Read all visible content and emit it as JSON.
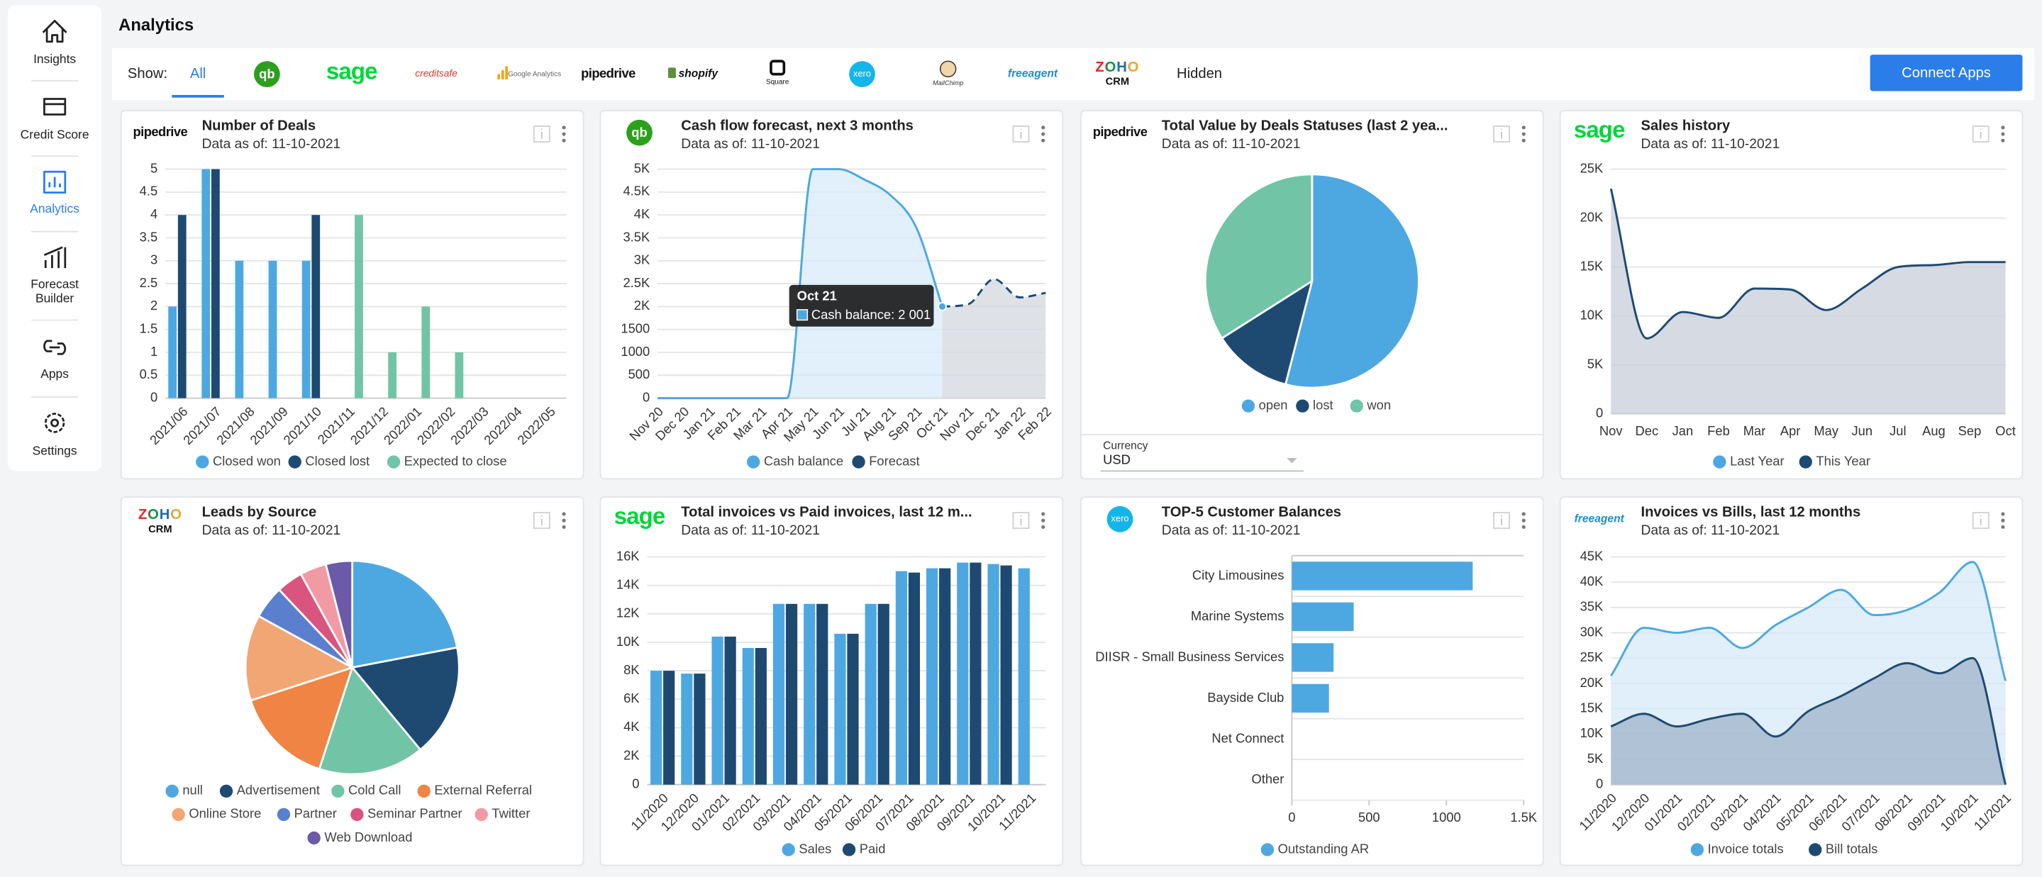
{
  "sidebar": {
    "items": [
      [
        "Insights"
      ],
      [
        "Credit Score"
      ],
      [
        "Analytics"
      ],
      [
        "Forecast",
        "Builder"
      ],
      [
        "Apps"
      ],
      [
        "Settings"
      ]
    ]
  },
  "page_title": "Analytics",
  "show_bar": {
    "label": "Show:",
    "tabs": [
      {
        "text": "All"
      },
      {
        "text": "qb"
      },
      {
        "text": "sage"
      },
      {
        "text": "creditsafe"
      },
      {
        "text": "Google Analytics"
      },
      {
        "text": "pipedrive"
      },
      {
        "text": "shopify"
      },
      {
        "text": "Square"
      },
      {
        "text": "xero"
      },
      {
        "text": "MailChimp"
      },
      {
        "text": "freeagent"
      },
      {
        "text": "ZOHO",
        "sub": "CRM"
      },
      {
        "text": "Hidden"
      }
    ],
    "button": "Connect Apps"
  },
  "chart_data": [
    {
      "type": "bar",
      "logo": "pipedrive",
      "title": "Number of Deals",
      "subtitle": "Data as of: 11-10-2021",
      "categories": [
        "2021/06",
        "2021/07",
        "2021/08",
        "2021/09",
        "2021/10",
        "2021/11",
        "2021/12",
        "2022/01",
        "2022/02",
        "2022/03",
        "2022/04",
        "2022/05"
      ],
      "series": [
        {
          "name": "Closed won",
          "color": "#4da8e2",
          "values": [
            2,
            5,
            3,
            3,
            3,
            null,
            null,
            null,
            null,
            null,
            null,
            null
          ]
        },
        {
          "name": "Closed lost",
          "color": "#1e4a72",
          "values": [
            4,
            5,
            null,
            null,
            4,
            null,
            null,
            null,
            null,
            null,
            null,
            null
          ]
        },
        {
          "name": "Expected to close",
          "color": "#72c4a6",
          "values": [
            null,
            null,
            null,
            null,
            null,
            4,
            1,
            2,
            1,
            null,
            null,
            null
          ]
        }
      ],
      "ylim": [
        0,
        5
      ],
      "yticks": [
        0,
        0.5,
        1,
        1.5,
        2,
        2.5,
        3,
        3.5,
        4,
        4.5,
        5
      ],
      "grid": true
    },
    {
      "type": "area",
      "logo": "qb",
      "title": "Cash flow forecast, next 3 months",
      "subtitle": "Data as of: 11-10-2021",
      "categories": [
        "Nov 20",
        "Dec 20",
        "Jan 21",
        "Feb 21",
        "Mar 21",
        "Apr 21",
        "May 21",
        "Jun 21",
        "Jul 21",
        "Aug 21",
        "Sep 21",
        "Oct 21",
        "Nov 21",
        "Dec 21",
        "Jan 22",
        "Feb 22"
      ],
      "series": [
        {
          "name": "Cash balance",
          "color": "#4da8e2",
          "fill": "#d7ebf9",
          "values": [
            0,
            0,
            0,
            0,
            0,
            0,
            5000,
            5000,
            4770,
            4430,
            3720,
            2001,
            null,
            null,
            null,
            null
          ]
        },
        {
          "name": "Forecast",
          "color": "#1e4a72",
          "fill": "#d3d8df",
          "dashed": true,
          "values": [
            null,
            null,
            null,
            null,
            null,
            null,
            null,
            null,
            null,
            null,
            null,
            2001,
            2050,
            2600,
            2200,
            2300
          ]
        }
      ],
      "ylim": [
        0,
        5000
      ],
      "yticks": [
        0,
        500,
        1000,
        1500,
        {
          "value": 2000,
          "label": "2K"
        },
        {
          "value": 2500,
          "label": "2.5K"
        },
        {
          "value": 3000,
          "label": "3K"
        },
        {
          "value": 3500,
          "label": "3.5K"
        },
        {
          "value": 4000,
          "label": "4K"
        },
        {
          "value": 4500,
          "label": "4.5K"
        },
        {
          "value": 5000,
          "label": "5K"
        }
      ],
      "grid": true,
      "tooltip": {
        "title": "Oct 21",
        "text": "Cash balance: 2 001"
      }
    },
    {
      "type": "pie",
      "logo": "pipedrive",
      "title": "Total Value by Deals Statuses (last 2 yea...",
      "subtitle": "Data as of: 11-10-2021",
      "categories": [
        "open",
        "lost",
        "won"
      ],
      "values": [
        54,
        12,
        34
      ],
      "colors": [
        "#4da8e2",
        "#1e4a72",
        "#72c4a6"
      ],
      "currency": {
        "label": "Currency",
        "value": "USD"
      }
    },
    {
      "type": "area",
      "logo": "sage",
      "title": "Sales history",
      "subtitle": "Data as of: 11-10-2021",
      "categories": [
        "Nov",
        "Dec",
        "Jan",
        "Feb",
        "Mar",
        "Apr",
        "May",
        "Jun",
        "Jul",
        "Aug",
        "Sep",
        "Oct"
      ],
      "series": [
        {
          "name": "Last Year",
          "color": "#4da8e2",
          "fill": "#d7ebf9",
          "values": [
            null,
            null,
            null,
            null,
            null,
            null,
            null,
            null,
            null,
            null,
            null,
            null
          ]
        },
        {
          "name": "This Year",
          "color": "#1e4a72",
          "fill": "#c8ced8",
          "values": [
            23000,
            7700,
            10400,
            9800,
            12800,
            12700,
            10600,
            12800,
            15000,
            15200,
            15500,
            15500
          ]
        }
      ],
      "ylim": [
        0,
        25000
      ],
      "yticks": [
        0,
        {
          "value": 5000,
          "label": "5K"
        },
        {
          "value": 10000,
          "label": "10K"
        },
        {
          "value": 15000,
          "label": "15K"
        },
        {
          "value": 20000,
          "label": "20K"
        },
        {
          "value": 25000,
          "label": "25K"
        }
      ],
      "grid": true
    },
    {
      "type": "pie",
      "logo": "ZOHO",
      "logo_sub": "CRM",
      "title": "Leads by Source",
      "subtitle": "Data as of: 11-10-2021",
      "categories": [
        "null",
        "Advertisement",
        "Cold Call",
        "External Referral",
        "Online Store",
        "Partner",
        "Seminar Partner",
        "Twitter",
        "Web Download"
      ],
      "values": [
        22,
        17,
        16,
        15,
        13,
        5,
        4,
        4,
        4
      ],
      "colors": [
        "#4da8e2",
        "#1e4a72",
        "#72c4a6",
        "#ef8444",
        "#f2a673",
        "#5b7fcf",
        "#d9547f",
        "#f29aa3",
        "#6a5aa8"
      ]
    },
    {
      "type": "bar",
      "logo": "sage",
      "title": "Total invoices vs Paid invoices, last 12 m...",
      "subtitle": "Data as of: 11-10-2021",
      "categories": [
        "11/2020",
        "12/2020",
        "01/2021",
        "02/2021",
        "03/2021",
        "04/2021",
        "05/2021",
        "06/2021",
        "07/2021",
        "08/2021",
        "09/2021",
        "10/2021",
        "11/2021"
      ],
      "series": [
        {
          "name": "Sales",
          "color": "#4da8e2",
          "values": [
            8000,
            7800,
            10400,
            9600,
            12700,
            12700,
            10600,
            12700,
            15000,
            15200,
            15600,
            15500,
            15200
          ]
        },
        {
          "name": "Paid",
          "color": "#1e4a72",
          "values": [
            8000,
            7800,
            10400,
            9600,
            12700,
            12700,
            10600,
            12700,
            14900,
            15200,
            15600,
            15400,
            null
          ]
        }
      ],
      "ylim": [
        0,
        16000
      ],
      "yticks": [
        0,
        {
          "value": 2000,
          "label": "2K"
        },
        {
          "value": 4000,
          "label": "4K"
        },
        {
          "value": 6000,
          "label": "6K"
        },
        {
          "value": 8000,
          "label": "8K"
        },
        {
          "value": 10000,
          "label": "10K"
        },
        {
          "value": 12000,
          "label": "12K"
        },
        {
          "value": 14000,
          "label": "14K"
        },
        {
          "value": 16000,
          "label": "16K"
        }
      ],
      "grid": true
    },
    {
      "type": "hbar",
      "logo": "xero",
      "title": "TOP-5 Customer Balances",
      "subtitle": "Data as of: 11-10-2021",
      "categories": [
        "City Limousines",
        "Marine Systems",
        "DIISR - Small Business Services",
        "Bayside Club",
        "Net Connect",
        "Other"
      ],
      "series": [
        {
          "name": "Outstanding AR",
          "color": "#4da8e2",
          "values": [
            1170,
            400,
            270,
            240,
            0,
            0
          ]
        }
      ],
      "xlim": [
        0,
        1500
      ],
      "xticks": [
        0,
        500,
        1000,
        {
          "value": 1500,
          "label": "1.5K"
        }
      ]
    },
    {
      "type": "area",
      "logo": "freeagent",
      "title": "Invoices vs Bills, last 12 months",
      "subtitle": "Data as of: 11-10-2021",
      "categories": [
        "11/2020",
        "12/2020",
        "01/2021",
        "02/2021",
        "03/2021",
        "04/2021",
        "05/2021",
        "06/2021",
        "07/2021",
        "08/2021",
        "09/2021",
        "10/2021",
        "11/2021"
      ],
      "series": [
        {
          "name": "Invoice totals",
          "color": "#4da8e2",
          "fill": "#d5e9f7",
          "values": [
            21500,
            31000,
            30000,
            31000,
            27000,
            31500,
            35000,
            38500,
            33500,
            34500,
            38000,
            44000,
            20500
          ]
        },
        {
          "name": "Bill totals",
          "color": "#1e4a72",
          "fill": "#9fb3c9",
          "values": [
            11500,
            14000,
            11500,
            13000,
            14000,
            9500,
            14500,
            17500,
            21000,
            24000,
            22000,
            25000,
            0
          ]
        }
      ],
      "ylim": [
        0,
        45000
      ],
      "yticks": [
        0,
        {
          "value": 5000,
          "label": "5K"
        },
        {
          "value": 10000,
          "label": "10K"
        },
        {
          "value": 15000,
          "label": "15K"
        },
        {
          "value": 20000,
          "label": "20K"
        },
        {
          "value": 25000,
          "label": "25K"
        },
        {
          "value": 30000,
          "label": "30K"
        },
        {
          "value": 35000,
          "label": "35K"
        },
        {
          "value": 40000,
          "label": "40K"
        },
        {
          "value": 45000,
          "label": "45K"
        }
      ],
      "grid": true
    }
  ]
}
